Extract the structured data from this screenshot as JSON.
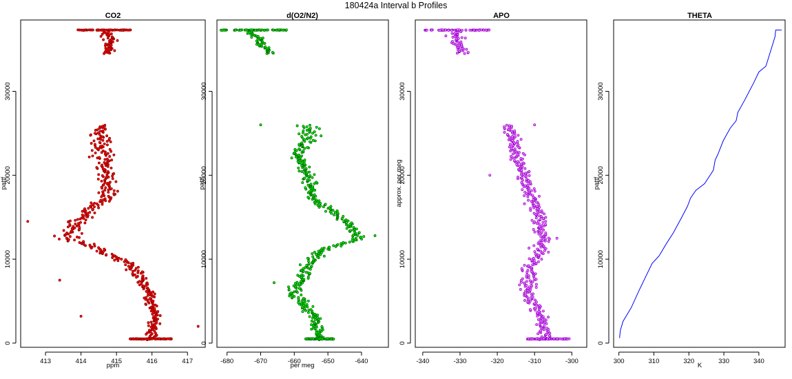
{
  "figure": {
    "title": "180424a   Interval b Profiles"
  },
  "chart_data": [
    {
      "type": "scatter",
      "title": "CO2",
      "xlabel": "ppm",
      "ylabel": "pattf",
      "xlim": [
        412.3,
        417.5
      ],
      "ylim": [
        -500,
        38500
      ],
      "xticks": [
        413,
        414,
        415,
        416,
        417
      ],
      "yticks": [
        0,
        10000,
        20000,
        30000
      ],
      "color": "#ff0000",
      "edge_color": "#8b0000",
      "grid": false,
      "samples": [
        [
          0,
          415.3,
          416.6,
          415.9,
          0.25
        ],
        [
          3000,
          415.8,
          416.4,
          416.1,
          0.3
        ],
        [
          6000,
          415.5,
          416.2,
          415.9,
          0.3
        ],
        [
          9000,
          414.9,
          416.0,
          415.5,
          0.3
        ],
        [
          11000,
          414.0,
          415.0,
          414.6,
          0.35
        ],
        [
          12500,
          412.8,
          414.3,
          413.6,
          0.35
        ],
        [
          15000,
          413.3,
          414.5,
          414.0,
          0.35
        ],
        [
          17500,
          414.1,
          415.2,
          414.8,
          0.3
        ],
        [
          20000,
          414.1,
          415.2,
          414.7,
          0.3
        ],
        [
          22500,
          413.8,
          415.5,
          414.6,
          0.3
        ],
        [
          25000,
          413.8,
          415.3,
          414.5,
          0.3
        ],
        [
          35000,
          414.4,
          415.2,
          414.8,
          0.3
        ],
        [
          37200,
          413.9,
          415.4,
          414.8,
          0.2
        ]
      ],
      "surface_y": 500,
      "top_y": 37300,
      "extra_points": [
        [
          412.5,
          14500
        ],
        [
          417.3,
          2000
        ],
        [
          413.4,
          7500
        ],
        [
          414.0,
          3200
        ]
      ]
    },
    {
      "type": "scatter",
      "title": "d(O2/N2)",
      "xlabel": "per meg",
      "ylabel": "pattf",
      "xlim": [
        -683,
        -632
      ],
      "ylim": [
        -500,
        38500
      ],
      "xticks": [
        -680,
        -670,
        -660,
        -650,
        -640
      ],
      "yticks": [
        0,
        10000,
        20000,
        30000
      ],
      "color": "#00ee00",
      "edge_color": "#006400",
      "grid": false,
      "samples": [
        [
          0,
          -656,
          -648,
          -652,
          0.25
        ],
        [
          3000,
          -660,
          -649,
          -654,
          0.3
        ],
        [
          6000,
          -665,
          -655,
          -660,
          0.3
        ],
        [
          9000,
          -661,
          -650,
          -656,
          0.3
        ],
        [
          11000,
          -658,
          -647,
          -652,
          0.35
        ],
        [
          12500,
          -644,
          -637,
          -641,
          0.35
        ],
        [
          15000,
          -651,
          -642,
          -646,
          0.35
        ],
        [
          17500,
          -660,
          -650,
          -655,
          0.3
        ],
        [
          20000,
          -661,
          -651,
          -656,
          0.3
        ],
        [
          22500,
          -664,
          -653,
          -659,
          0.3
        ],
        [
          25000,
          -662,
          -648,
          -655,
          0.3
        ],
        [
          35000,
          -672,
          -665,
          -668,
          0.3
        ],
        [
          37200,
          -682,
          -662,
          -673,
          0.2
        ]
      ],
      "surface_y": 500,
      "top_y": 37300,
      "extra_points": [
        [
          -670,
          26000
        ],
        [
          -636,
          12800
        ],
        [
          -666,
          7200
        ]
      ]
    },
    {
      "type": "scatter",
      "title": "APO",
      "xlabel": "",
      "ylabel": "approx. per meg",
      "xlim": [
        -342,
        -296
      ],
      "ylim": [
        -500,
        38500
      ],
      "xticks": [
        -340,
        -330,
        -320,
        -310,
        -300
      ],
      "yticks": [
        0,
        10000,
        20000,
        30000
      ],
      "color": "#ee82ee",
      "edge_color": "#9400d3",
      "grid": false,
      "samples": [
        [
          0,
          -312,
          -300,
          -307,
          0.25
        ],
        [
          3000,
          -312,
          -304,
          -308,
          0.3
        ],
        [
          6000,
          -318,
          -307,
          -312,
          0.3
        ],
        [
          9000,
          -316,
          -306,
          -311,
          0.3
        ],
        [
          11000,
          -314,
          -304,
          -309,
          0.35
        ],
        [
          12500,
          -312,
          -302,
          -307,
          0.35
        ],
        [
          15000,
          -314,
          -305,
          -309,
          0.35
        ],
        [
          17500,
          -316,
          -306,
          -311,
          0.3
        ],
        [
          20000,
          -318,
          -309,
          -313,
          0.3
        ],
        [
          22500,
          -320,
          -311,
          -315,
          0.3
        ],
        [
          25000,
          -320,
          -312,
          -316,
          0.3
        ],
        [
          35000,
          -334,
          -325,
          -330,
          0.3
        ],
        [
          37200,
          -340,
          -322,
          -331,
          0.2
        ]
      ],
      "surface_y": 500,
      "top_y": 37300,
      "extra_points": [
        [
          -322,
          20000
        ],
        [
          -310,
          26000
        ],
        [
          -304,
          12500
        ]
      ]
    },
    {
      "type": "line",
      "title": "THETA",
      "xlabel": "K",
      "ylabel": "pattf",
      "xlim": [
        298.5,
        347.5
      ],
      "ylim": [
        -500,
        38500
      ],
      "xticks": [
        300,
        310,
        320,
        330,
        340
      ],
      "yticks": [
        0,
        10000,
        20000,
        30000
      ],
      "color": "#0000ff",
      "grid": false,
      "x": [
        300.2,
        300.4,
        301.2,
        303.5,
        305.8,
        309.5,
        311.5,
        313.5,
        315.5,
        317.7,
        319.6,
        320.5,
        322.0,
        324.5,
        327.0,
        327.5,
        328.3,
        329.8,
        331.8,
        333.5,
        334.0,
        336.0,
        338.5,
        340.0,
        342.0,
        343.5,
        344.6,
        344.8,
        346.5
      ],
      "y": [
        600,
        1500,
        2600,
        4200,
        6300,
        9500,
        10400,
        11800,
        13100,
        14800,
        16300,
        17300,
        18200,
        19000,
        20600,
        21800,
        22500,
        24100,
        25600,
        26500,
        27500,
        29000,
        31000,
        32300,
        33000,
        35000,
        36500,
        37300,
        37300
      ]
    }
  ]
}
